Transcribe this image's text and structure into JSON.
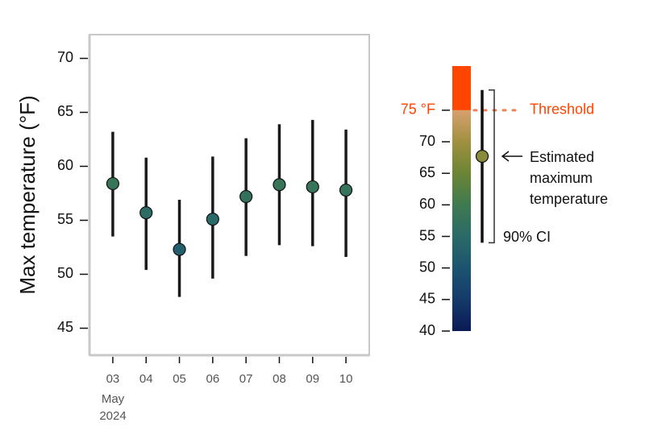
{
  "chart_data": {
    "type": "errorbar",
    "y_label": "Max temperature (°F)",
    "categories": [
      "03",
      "04",
      "05",
      "06",
      "07",
      "08",
      "09",
      "10"
    ],
    "x_month": "May",
    "x_year": "2024",
    "values": [
      58.4,
      55.7,
      52.3,
      55.1,
      57.2,
      58.3,
      58.1,
      57.8
    ],
    "lower": [
      53.5,
      50.4,
      47.9,
      49.6,
      51.7,
      52.7,
      52.6,
      51.6
    ],
    "upper": [
      63.2,
      60.8,
      56.9,
      60.9,
      62.6,
      63.9,
      64.3,
      63.4
    ],
    "ylim": [
      42.5,
      72.2
    ],
    "yticks": [
      45,
      50,
      55,
      60,
      65,
      70
    ],
    "legend": {
      "ylim": [
        40,
        82
      ],
      "yticks": [
        40,
        45,
        50,
        55,
        60,
        65,
        70
      ],
      "stops": [
        {
          "value": 40,
          "color": "#0a1a55"
        },
        {
          "value": 45,
          "color": "#143a6a"
        },
        {
          "value": 50,
          "color": "#1c5470"
        },
        {
          "value": 55,
          "color": "#2a6a68"
        },
        {
          "value": 60,
          "color": "#3f7a50"
        },
        {
          "value": 65,
          "color": "#6b8535"
        },
        {
          "value": 70,
          "color": "#a0903e"
        },
        {
          "value": 75,
          "color": "#d8a070"
        }
      ],
      "threshold": {
        "value": 75,
        "label": "75 °F",
        "text": "Threshold",
        "color": "#ff4500"
      },
      "example": {
        "value": 67.7,
        "lower": 54.0,
        "upper": 78.2,
        "label": [
          "Estimated",
          "maximum",
          "temperature"
        ],
        "ci_label": "90% CI"
      }
    }
  }
}
